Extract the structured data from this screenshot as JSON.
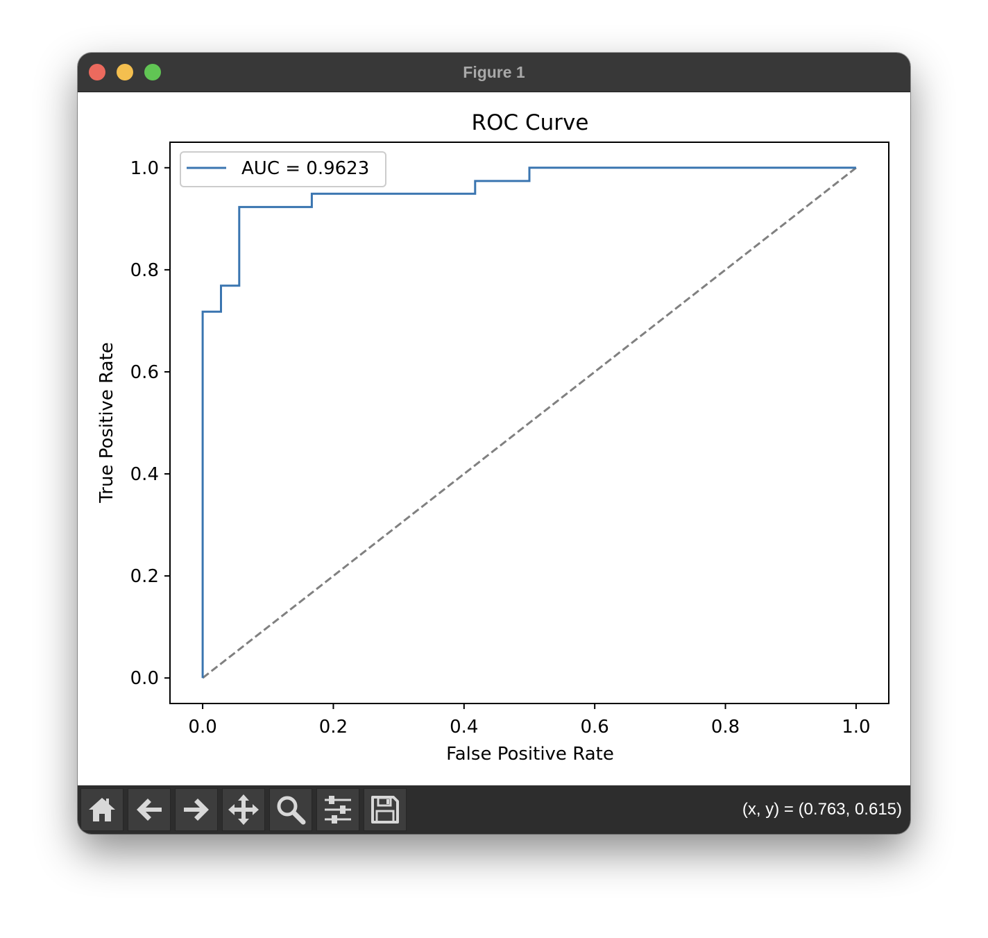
{
  "window": {
    "title": "Figure 1"
  },
  "toolbar": {
    "tools": [
      {
        "name": "home-icon"
      },
      {
        "name": "back-arrow-icon"
      },
      {
        "name": "forward-arrow-icon"
      },
      {
        "name": "pan-move-icon"
      },
      {
        "name": "zoom-magnifier-icon"
      },
      {
        "name": "configure-subplots-icon"
      },
      {
        "name": "save-figure-icon"
      }
    ],
    "coords_text": "(x, y) = (0.763, 0.615)"
  },
  "colors": {
    "roc_line": "#3a75b0",
    "diagonal": "#808080",
    "titlebar": "#383838",
    "toolbar": "#2d2d2d"
  },
  "chart_data": {
    "type": "line",
    "title": "ROC Curve",
    "xlabel": "False Positive Rate",
    "ylabel": "True Positive Rate",
    "xlim": [
      -0.05,
      1.05
    ],
    "ylim": [
      -0.05,
      1.05
    ],
    "xticks": [
      "0.0",
      "0.2",
      "0.4",
      "0.6",
      "0.8",
      "1.0"
    ],
    "yticks": [
      "0.0",
      "0.2",
      "0.4",
      "0.6",
      "0.8",
      "1.0"
    ],
    "grid": false,
    "legend": "top-left",
    "legend_label": "AUC = 0.9623",
    "series": [
      {
        "name": "AUC = 0.9623",
        "style": "solid",
        "x": [
          0.0,
          0.0,
          0.028,
          0.028,
          0.056,
          0.056,
          0.167,
          0.167,
          0.417,
          0.417,
          0.5,
          0.5,
          1.0
        ],
        "y": [
          0.0,
          0.718,
          0.718,
          0.769,
          0.769,
          0.923,
          0.923,
          0.949,
          0.949,
          0.974,
          0.974,
          1.0,
          1.0
        ]
      },
      {
        "style": "dashed",
        "x": [
          0.0,
          1.0
        ],
        "y": [
          0.0,
          1.0
        ]
      }
    ]
  }
}
